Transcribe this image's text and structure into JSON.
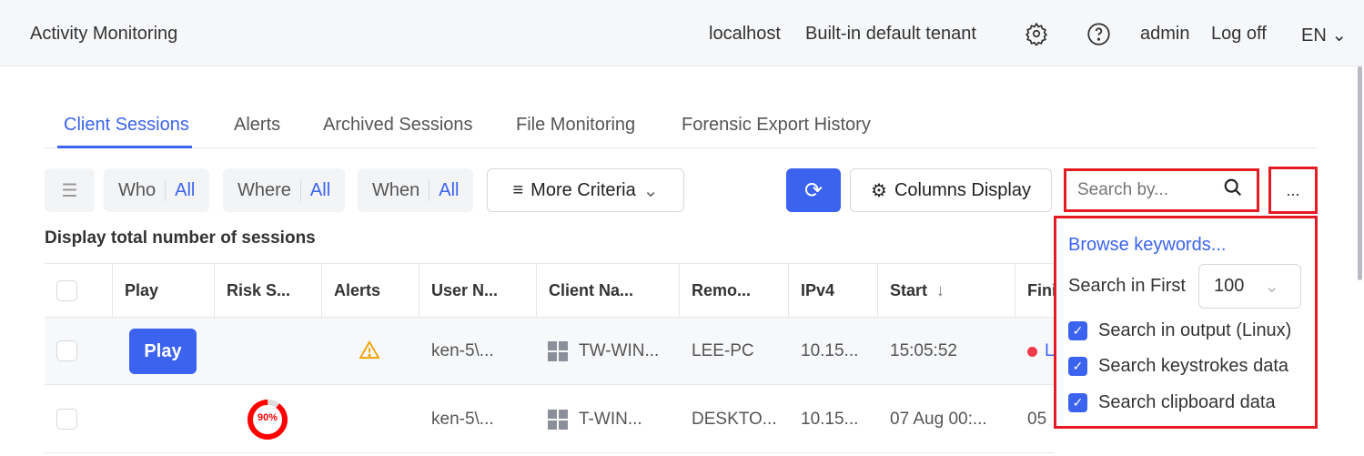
{
  "header": {
    "title": "Activity Monitoring",
    "host": "localhost",
    "tenant": "Built-in default tenant",
    "user": "admin",
    "logoff": "Log off",
    "lang": "EN"
  },
  "tabs": [
    {
      "label": "Client Sessions",
      "active": true
    },
    {
      "label": "Alerts"
    },
    {
      "label": "Archived Sessions"
    },
    {
      "label": "File Monitoring"
    },
    {
      "label": "Forensic Export History"
    }
  ],
  "toolbar": {
    "who": "Who",
    "who_val": "All",
    "where": "Where",
    "where_val": "All",
    "when": "When",
    "when_val": "All",
    "more": "More Criteria",
    "columns": "Columns Display",
    "search_placeholder": "Search by...",
    "more_btn": "..."
  },
  "summary": "Display total number of sessions",
  "columns": [
    "Play",
    "Risk S...",
    "Alerts",
    "User N...",
    "Client Na...",
    "Remo...",
    "IPv4",
    "Start",
    "Fini"
  ],
  "rows": [
    {
      "play": "Play",
      "alert": "warning",
      "user": "ken-5\\...",
      "client": "TW-WIN...",
      "remote": "LEE-PC",
      "ipv4": "10.15...",
      "start": "15:05:52",
      "finish": "L"
    },
    {
      "risk": "90%",
      "risk_value": 90,
      "user": "ken-5\\...",
      "client": "T-WIN...",
      "remote": "DESKTO...",
      "ipv4": "10.15...",
      "start": "07 Aug 00:...",
      "finish": "05"
    }
  ],
  "dropdown": {
    "browse": "Browse keywords...",
    "search_first_label": "Search in First",
    "search_first_value": "100",
    "options": [
      {
        "label": "Search in output (Linux)",
        "checked": true
      },
      {
        "label": "Search keystrokes data",
        "checked": true
      },
      {
        "label": "Search clipboard data",
        "checked": true
      }
    ]
  },
  "colors": {
    "accent": "#3b63f0",
    "highlight": "#e41b23",
    "warning": "#f0a000"
  }
}
